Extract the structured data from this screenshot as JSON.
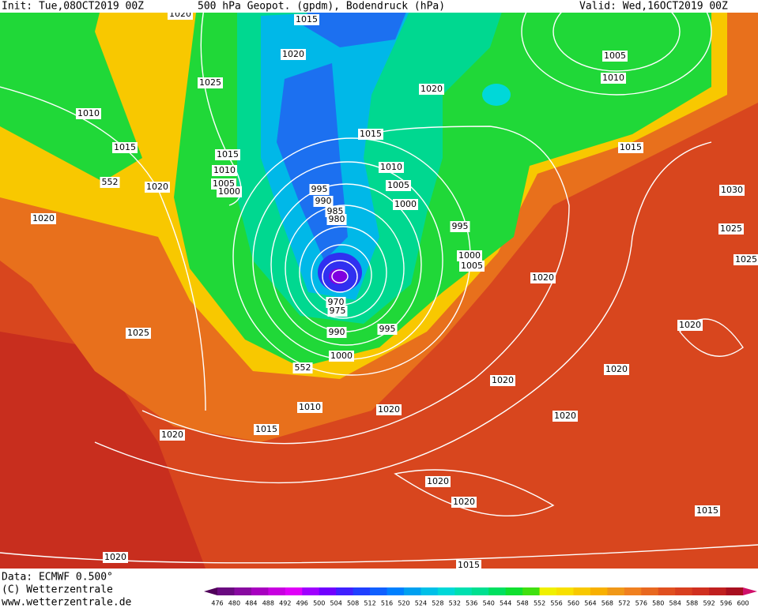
{
  "header": {
    "init": "Init: Tue,08OCT2019 00Z",
    "title": "500 hPa Geopot. (gpdm), Bodendruck (hPa)",
    "valid": "Valid: Wed,16OCT2019 00Z"
  },
  "map": {
    "isobar_labels": [
      "1020",
      "1015",
      "1020",
      "1025",
      "1010",
      "1015",
      "552",
      "1020",
      "1020",
      "1015",
      "1010",
      "1005",
      "1000",
      "995",
      "990",
      "985",
      "980",
      "1020",
      "1015",
      "1010",
      "1005",
      "1000",
      "995",
      "1000",
      "1005",
      "1005",
      "1010",
      "1015",
      "1030",
      "1025",
      "1025",
      "1020",
      "970",
      "975",
      "990",
      "995",
      "1000",
      "552",
      "1025",
      "1020",
      "1020",
      "1020",
      "1010",
      "1020",
      "1015",
      "1020",
      "1020",
      "1020",
      "1020",
      "1015",
      "1020",
      "1015"
    ]
  },
  "footer": {
    "data": "Data: ECMWF   0.500°",
    "copyright": "(C) Wetterzentrale",
    "url": "www.wetterzentrale.de"
  },
  "colorbar": {
    "labels": [
      "476",
      "480",
      "484",
      "488",
      "492",
      "496",
      "500",
      "504",
      "508",
      "512",
      "516",
      "520",
      "524",
      "528",
      "532",
      "536",
      "540",
      "544",
      "548",
      "552",
      "556",
      "560",
      "564",
      "568",
      "572",
      "576",
      "580",
      "584",
      "588",
      "592",
      "596",
      "600"
    ],
    "colors": [
      "#50005a",
      "#6a0a80",
      "#880aa0",
      "#a800c0",
      "#c800e0",
      "#e000f8",
      "#a000ff",
      "#7000ff",
      "#4020ff",
      "#2040ff",
      "#1060ff",
      "#0080ff",
      "#00a0f0",
      "#00c0e8",
      "#00d8d8",
      "#00e0b0",
      "#00e090",
      "#00e060",
      "#10e030",
      "#40e010",
      "#f0f000",
      "#f8e000",
      "#f8c800",
      "#f8b000",
      "#f09818",
      "#f08020",
      "#e86820",
      "#e05020",
      "#d84020",
      "#d03020",
      "#c02020",
      "#a81020",
      "#d0106a"
    ]
  }
}
